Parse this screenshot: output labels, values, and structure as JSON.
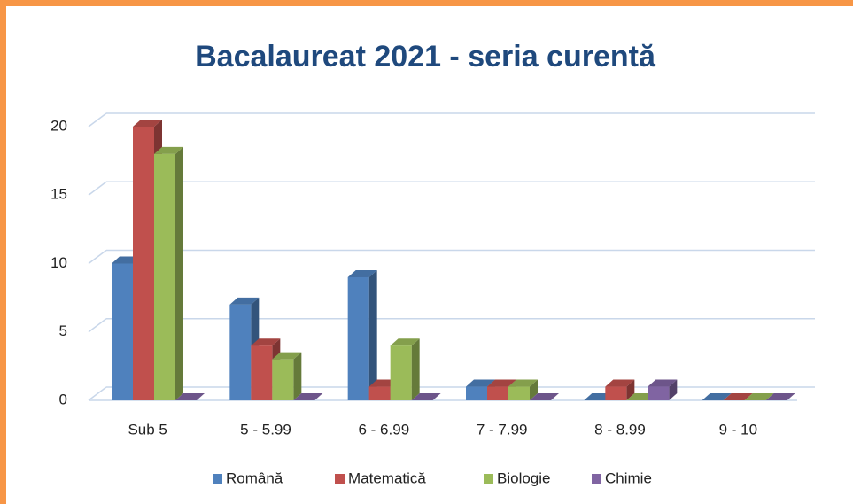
{
  "chart_data": {
    "type": "bar",
    "title": "Bacalaureat 2021 - seria curentă",
    "categories": [
      "Sub 5",
      "5 - 5.99",
      "6 - 6.99",
      "7 - 7.99",
      "8 - 8.99",
      "9 - 10"
    ],
    "series": [
      {
        "name": "Română",
        "color": "#4f81bd",
        "values": [
          10,
          7,
          9,
          1,
          0,
          0
        ]
      },
      {
        "name": "Matematică",
        "color": "#c0504d",
        "values": [
          20,
          4,
          1,
          1,
          1,
          0
        ]
      },
      {
        "name": "Biologie",
        "color": "#9bbb59",
        "values": [
          18,
          3,
          4,
          1,
          0,
          0
        ]
      },
      {
        "name": "Chimie",
        "color": "#8064a2",
        "values": [
          0,
          0,
          0,
          0,
          1,
          0
        ]
      }
    ],
    "ylim": [
      0,
      20
    ],
    "yticks": [
      0,
      5,
      10,
      15,
      20
    ],
    "grid": true,
    "legend": "bottom"
  }
}
